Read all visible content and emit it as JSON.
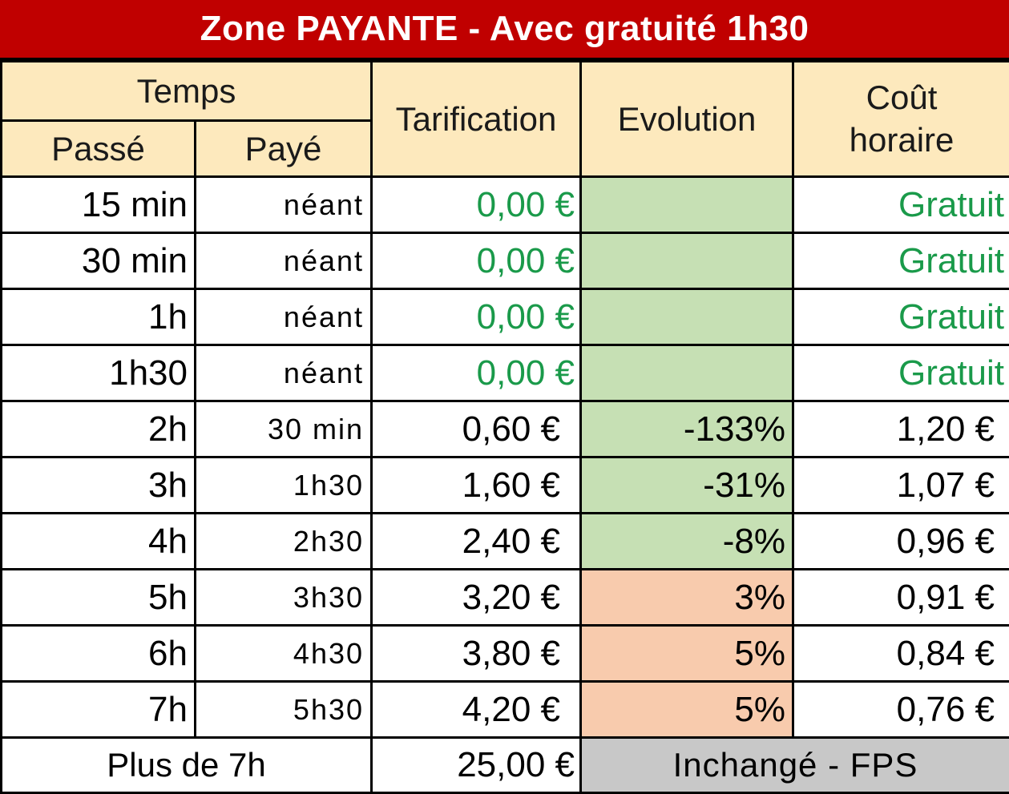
{
  "title": "Zone PAYANTE - Avec gratuité 1h30",
  "headers": {
    "temps": "Temps",
    "passe": "Passé",
    "paye": "Payé",
    "tarification": "Tarification",
    "evolution": "Evolution",
    "cout_line1": "Coût",
    "cout_line2": "horaire"
  },
  "rows": [
    {
      "passe": "15 min",
      "paye": "néant",
      "tarif": "0,00 €",
      "evol": "",
      "cout": "Gratuit",
      "free": true,
      "evol_color": "#c6e0b4"
    },
    {
      "passe": "30 min",
      "paye": "néant",
      "tarif": "0,00 €",
      "evol": "",
      "cout": "Gratuit",
      "free": true,
      "evol_color": "#c6e0b4"
    },
    {
      "passe": "1h",
      "paye": "néant",
      "tarif": "0,00 €",
      "evol": "",
      "cout": "Gratuit",
      "free": true,
      "evol_color": "#c6e0b4"
    },
    {
      "passe": "1h30",
      "paye": "néant",
      "tarif": "0,00 €",
      "evol": "",
      "cout": "Gratuit",
      "free": true,
      "evol_color": "#c6e0b4"
    },
    {
      "passe": "2h",
      "paye": "30 min",
      "tarif": "0,60 €",
      "evol": "-133%",
      "cout": "1,20 €",
      "free": false,
      "evol_color": "#c6e0b4"
    },
    {
      "passe": "3h",
      "paye": "1h30",
      "tarif": "1,60 €",
      "evol": "-31%",
      "cout": "1,07 €",
      "free": false,
      "evol_color": "#c6e0b4"
    },
    {
      "passe": "4h",
      "paye": "2h30",
      "tarif": "2,40 €",
      "evol": "-8%",
      "cout": "0,96 €",
      "free": false,
      "evol_color": "#c6e0b4"
    },
    {
      "passe": "5h",
      "paye": "3h30",
      "tarif": "3,20 €",
      "evol": "3%",
      "cout": "0,91 €",
      "free": false,
      "evol_color": "#f8cbad"
    },
    {
      "passe": "6h",
      "paye": "4h30",
      "tarif": "3,80 €",
      "evol": "5%",
      "cout": "0,84 €",
      "free": false,
      "evol_color": "#f8cbad"
    },
    {
      "passe": "7h",
      "paye": "5h30",
      "tarif": "4,20 €",
      "evol": "5%",
      "cout": "0,76 €",
      "free": false,
      "evol_color": "#f8cbad"
    }
  ],
  "footer": {
    "label": "Plus de 7h",
    "price": "25,00 €",
    "status": "Inchangé - FPS"
  },
  "colors": {
    "title_bg": "#c00000",
    "header_bg": "#fde9bd",
    "free_text": "#1a9a4a",
    "decrease_bg": "#c6e0b4",
    "increase_bg": "#f8cbad",
    "status_bg": "#c8c8c8"
  }
}
